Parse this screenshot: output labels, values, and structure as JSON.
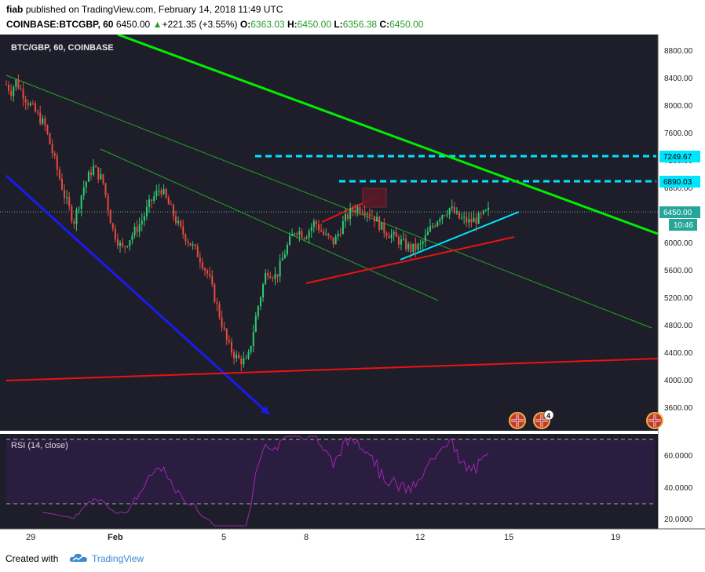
{
  "header": {
    "author": "fiab",
    "published_text": "published on TradingView.com, February 14, 2018 11:49 UTC",
    "symbol_full": "COINBASE:BTCGBP, 60",
    "last": "6450.00",
    "change": "+221.35 (+3.55%)",
    "open_label": "O:",
    "open": "6363.03",
    "high_label": "H:",
    "high": "6450.00",
    "low_label": "L:",
    "low": "6356.38",
    "close_label": "C:",
    "close": "6450.00"
  },
  "chart": {
    "symbol_label": "BTC/GBP, 60, COINBASE",
    "background": "#1e1e2b",
    "price_ticks": [
      "8800.00",
      "8400.00",
      "8000.00",
      "7600.00",
      "7200.00",
      "6800.00",
      "6400.00",
      "6000.00",
      "5600.00",
      "5200.00",
      "4800.00",
      "4400.00",
      "4000.00",
      "3600.00"
    ],
    "badges": {
      "level_7249": "7249.67",
      "level_6890": "6890.03",
      "last_price": "6450.00",
      "countdown": "10:46"
    },
    "time_ticks": [
      "29",
      "Feb",
      "5",
      "8",
      "12",
      "15",
      "19"
    ],
    "event_count": "4"
  },
  "rsi": {
    "label": "RSI (14, close)",
    "ticks": [
      "60.0000",
      "40.0000",
      "20.0000"
    ],
    "line_color": "#9c27b0"
  },
  "chart_data": {
    "type": "candlestick",
    "xlabel": "",
    "ylabel": "",
    "ylim": [
      3300,
      9000
    ],
    "x_tick_labels": [
      "29",
      "Feb",
      "5",
      "8",
      "12",
      "15",
      "19"
    ],
    "price_path": [
      [
        0,
        8300
      ],
      [
        0.5,
        8200
      ],
      [
        1,
        8350
      ],
      [
        2,
        8100
      ],
      [
        3,
        7900
      ],
      [
        4,
        7700
      ],
      [
        5,
        7200
      ],
      [
        6,
        6700
      ],
      [
        7,
        6300
      ],
      [
        8,
        6800
      ],
      [
        9,
        7100
      ],
      [
        10,
        6900
      ],
      [
        11,
        6200
      ],
      [
        12,
        5900
      ],
      [
        13,
        6100
      ],
      [
        14,
        6300
      ],
      [
        15,
        6600
      ],
      [
        16,
        6800
      ],
      [
        17,
        6500
      ],
      [
        18,
        6200
      ],
      [
        19,
        6000
      ],
      [
        20,
        5800
      ],
      [
        21,
        5500
      ],
      [
        22,
        5000
      ],
      [
        23,
        4500
      ],
      [
        24,
        4300
      ],
      [
        25,
        4250
      ],
      [
        26,
        5000
      ],
      [
        27,
        5600
      ],
      [
        28,
        5500
      ],
      [
        29,
        5900
      ],
      [
        30,
        6200
      ],
      [
        31,
        6100
      ],
      [
        32,
        6300
      ],
      [
        33,
        6100
      ],
      [
        34,
        6000
      ],
      [
        35,
        6300
      ],
      [
        36,
        6500
      ],
      [
        37,
        6500
      ],
      [
        38,
        6400
      ],
      [
        39,
        6200
      ],
      [
        40,
        6100
      ],
      [
        41,
        6000
      ],
      [
        42,
        5900
      ],
      [
        43,
        5950
      ],
      [
        44,
        6200
      ],
      [
        45,
        6400
      ],
      [
        46,
        6500
      ],
      [
        47,
        6350
      ],
      [
        48,
        6300
      ],
      [
        49,
        6350
      ],
      [
        50,
        6450
      ]
    ],
    "annotations": [
      {
        "type": "level",
        "value": 7249.67,
        "style": "dashed",
        "color": "#00e5ff"
      },
      {
        "type": "level",
        "value": 6890.03,
        "style": "dashed",
        "color": "#00e5ff"
      },
      {
        "type": "level",
        "value": 6450.0,
        "style": "dotted",
        "color": "#4caf7a"
      }
    ],
    "rsi_levels": [
      70,
      30
    ],
    "rsi_ticks": [
      60,
      40,
      20
    ]
  }
}
